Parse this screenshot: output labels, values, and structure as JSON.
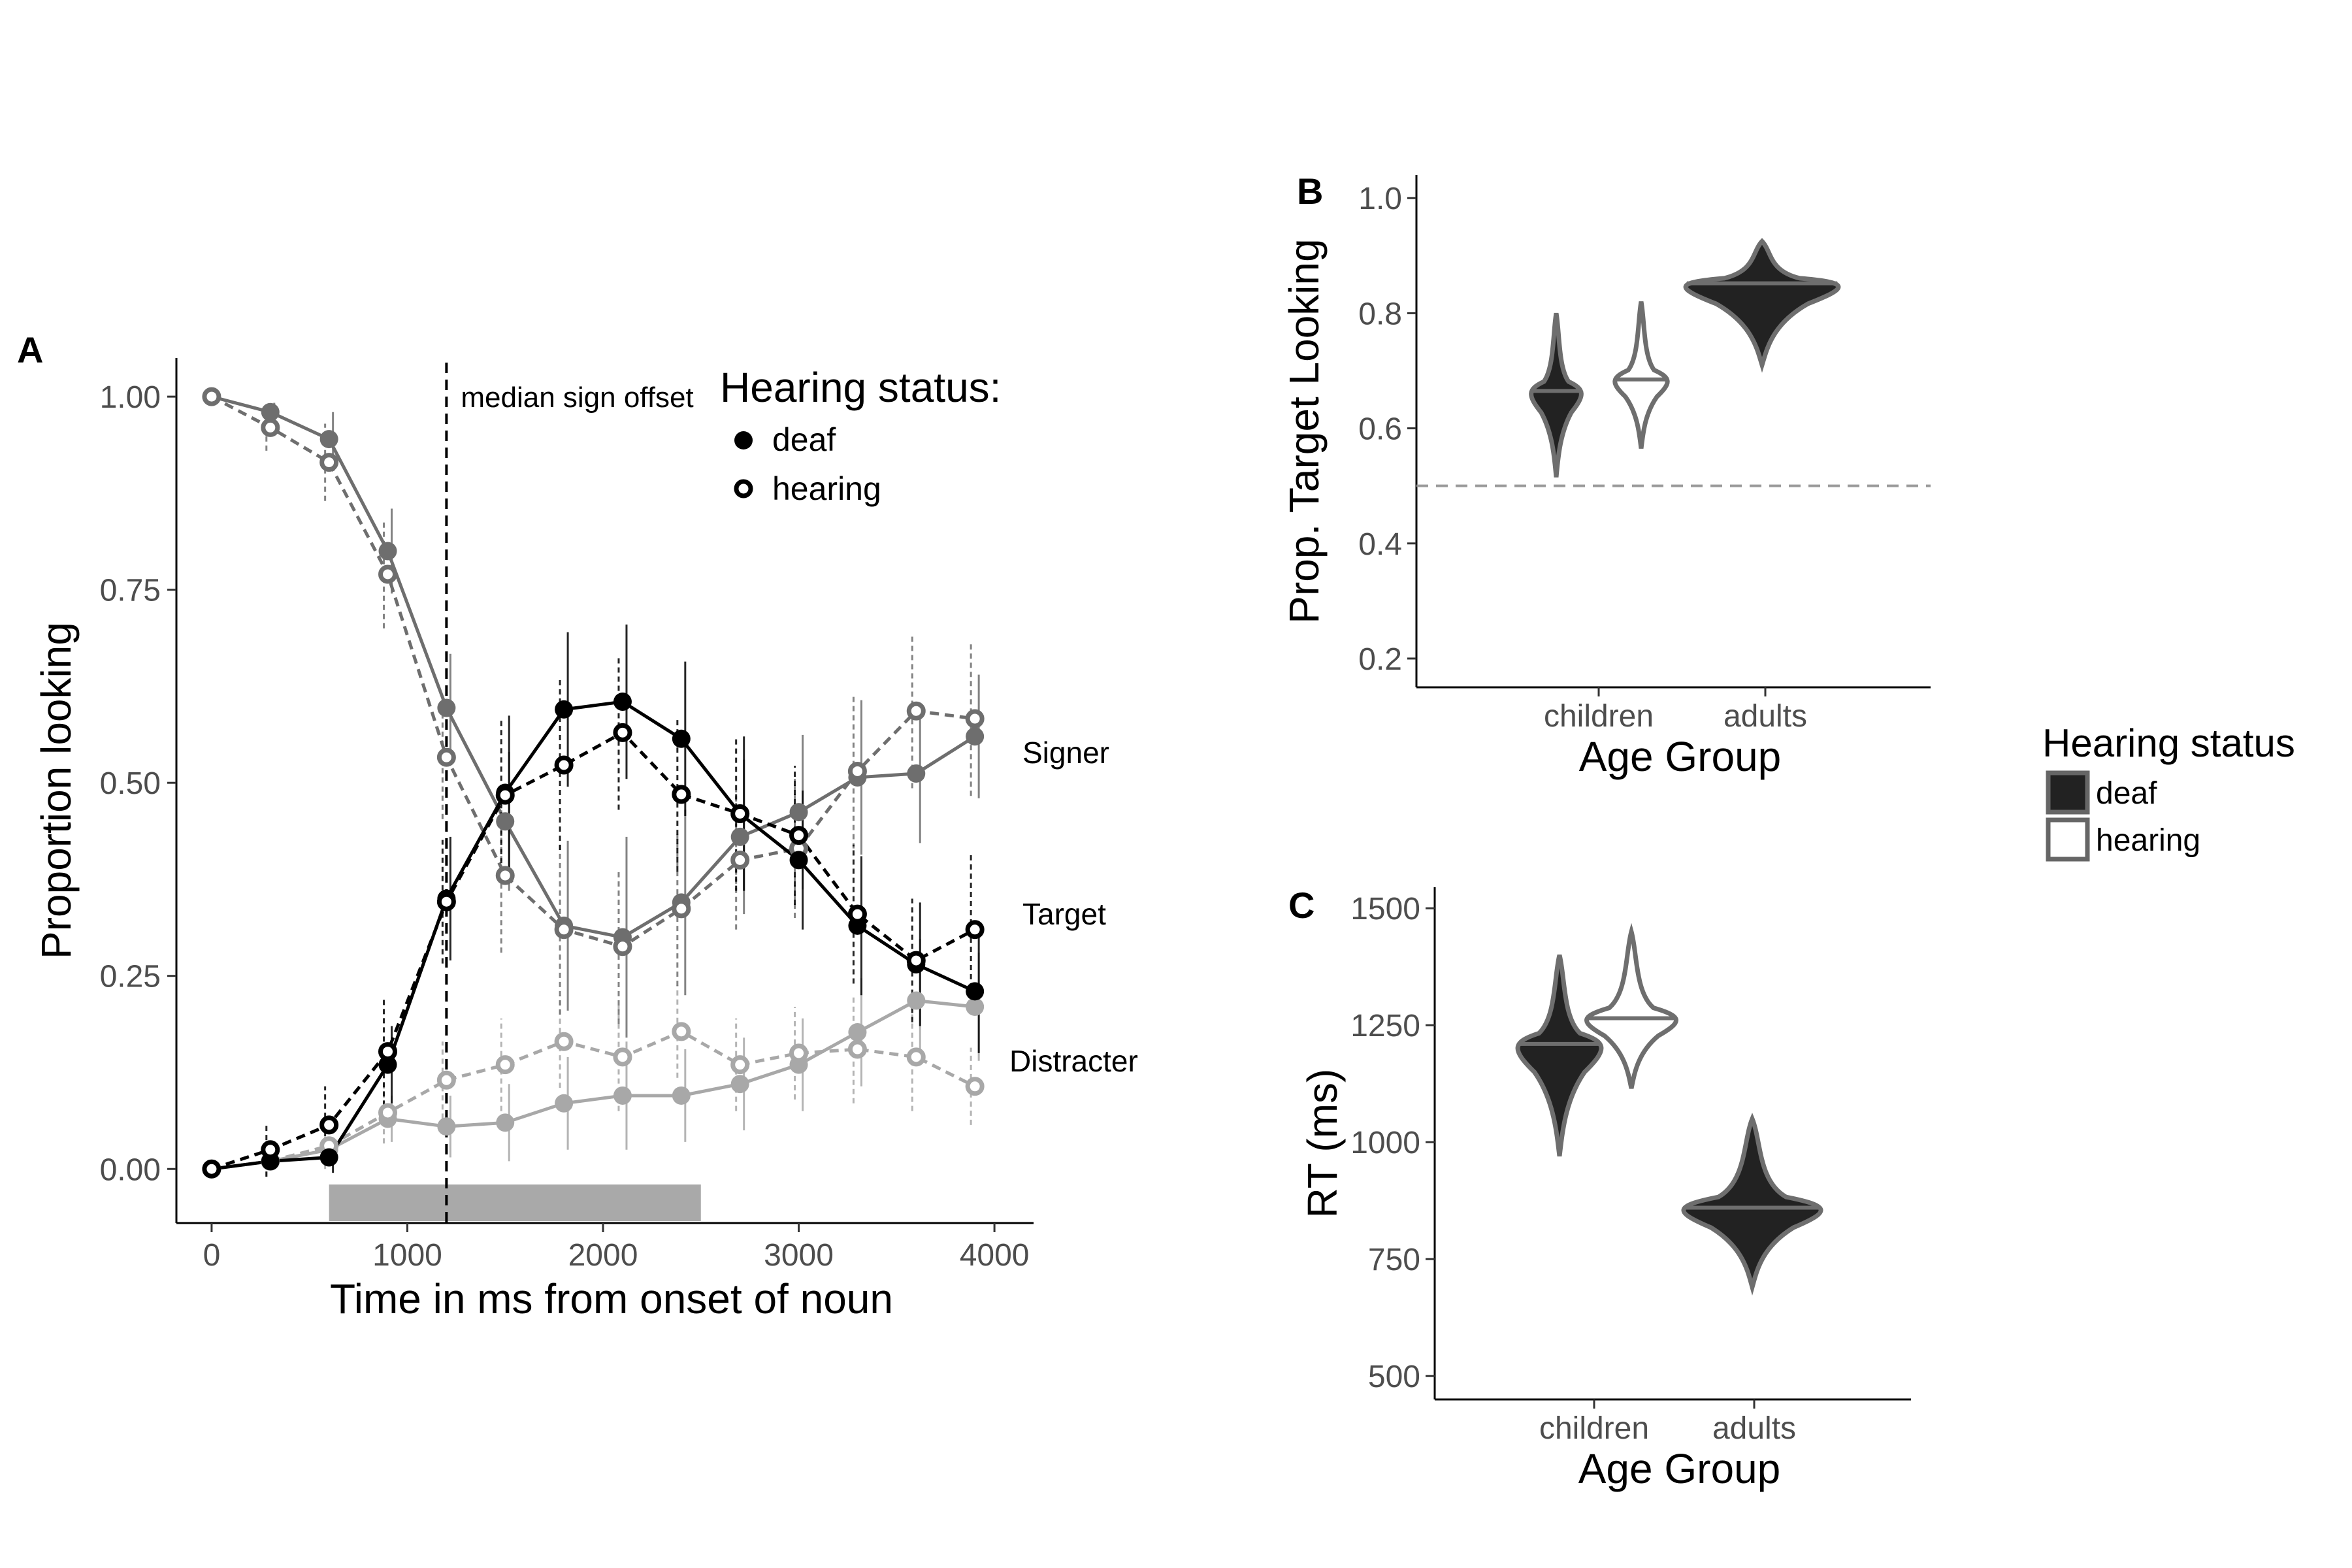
{
  "chart_data": [
    {
      "panel": "A",
      "type": "line",
      "xlabel": "Time in ms from onset of noun",
      "ylabel": "Proportion looking",
      "xlim": [
        -180,
        4200
      ],
      "ylim": [
        -0.07,
        1.05
      ],
      "x_ticks": [
        0,
        1000,
        2000,
        3000,
        4000
      ],
      "y_ticks": [
        0.0,
        0.25,
        0.5,
        0.75,
        1.0
      ],
      "y_tick_labels": [
        "0.00",
        "0.25",
        "0.50",
        "0.75",
        "1.00"
      ],
      "grid": false,
      "x": [
        0,
        300,
        600,
        900,
        1200,
        1500,
        1800,
        2100,
        2400,
        2700,
        3000,
        3300,
        3600,
        3900
      ],
      "vline": {
        "x": 1200,
        "label": "median sign offset"
      },
      "shaded_window": {
        "x_start": 600,
        "x_end": 2500
      },
      "legend": {
        "title": "Hearing status:",
        "entries": [
          "deaf",
          "hearing"
        ],
        "placement": "top-right"
      },
      "region_labels": [
        "Signer",
        "Target",
        "Distracter"
      ],
      "colors": {
        "Signer": "#6e6e6e",
        "Target": "#000000",
        "Distracter": "#a8a8a8",
        "shade": "#a9a9a9"
      },
      "series": [
        {
          "region": "Signer",
          "group": "deaf",
          "values": [
            1.0,
            0.98,
            0.945,
            0.8,
            0.597,
            0.45,
            0.315,
            0.3,
            0.345,
            0.43,
            0.462,
            0.507,
            0.512,
            0.56
          ],
          "err": [
            0.0,
            0.012,
            0.035,
            0.055,
            0.07,
            0.09,
            0.11,
            0.13,
            0.12,
            0.1,
            0.1,
            0.1,
            0.09,
            0.08
          ]
        },
        {
          "region": "Signer",
          "group": "hearing",
          "values": [
            1.0,
            0.96,
            0.915,
            0.77,
            0.533,
            0.38,
            0.31,
            0.288,
            0.337,
            0.4,
            0.415,
            0.515,
            0.593,
            0.583
          ],
          "err": [
            0.0,
            0.03,
            0.05,
            0.07,
            0.08,
            0.1,
            0.11,
            0.1,
            0.1,
            0.09,
            0.09,
            0.1,
            0.1,
            0.1
          ]
        },
        {
          "region": "Target",
          "group": "deaf",
          "values": [
            0.0,
            0.01,
            0.015,
            0.135,
            0.35,
            0.487,
            0.595,
            0.605,
            0.557,
            0.46,
            0.4,
            0.315,
            0.265,
            0.23
          ],
          "err": [
            0.0,
            0.01,
            0.02,
            0.05,
            0.08,
            0.1,
            0.1,
            0.1,
            0.1,
            0.1,
            0.09,
            0.09,
            0.08,
            0.08
          ]
        },
        {
          "region": "Target",
          "group": "hearing",
          "values": [
            0.0,
            0.025,
            0.057,
            0.152,
            0.346,
            0.484,
            0.523,
            0.565,
            0.485,
            0.46,
            0.432,
            0.33,
            0.27,
            0.31
          ],
          "err": [
            0.0,
            0.035,
            0.05,
            0.07,
            0.08,
            0.1,
            0.11,
            0.1,
            0.1,
            0.1,
            0.09,
            0.09,
            0.08,
            0.1
          ]
        },
        {
          "region": "Distracter",
          "group": "deaf",
          "values": [
            0.0,
            0.01,
            0.025,
            0.065,
            0.055,
            0.06,
            0.085,
            0.095,
            0.095,
            0.11,
            0.135,
            0.177,
            0.218,
            0.21
          ],
          "err": [
            0.0,
            0.01,
            0.015,
            0.03,
            0.04,
            0.05,
            0.06,
            0.07,
            0.06,
            0.06,
            0.06,
            0.07,
            0.08,
            0.07
          ]
        },
        {
          "region": "Distracter",
          "group": "hearing",
          "values": [
            0.0,
            0.01,
            0.03,
            0.073,
            0.115,
            0.135,
            0.165,
            0.145,
            0.178,
            0.135,
            0.15,
            0.155,
            0.145,
            0.107
          ],
          "err": [
            0.0,
            0.02,
            0.03,
            0.04,
            0.05,
            0.06,
            0.06,
            0.07,
            0.06,
            0.06,
            0.06,
            0.07,
            0.07,
            0.05
          ]
        }
      ]
    },
    {
      "panel": "B",
      "type": "violin",
      "xlabel": "Age Group",
      "ylabel": "Prop. Target Looking",
      "ylim": [
        0.15,
        1.04
      ],
      "y_ticks": [
        0.2,
        0.4,
        0.6,
        0.8,
        1.0
      ],
      "y_tick_labels": [
        "0.2",
        "0.4",
        "0.6",
        "0.8",
        "1.0"
      ],
      "categories": [
        "children",
        "adults"
      ],
      "hline": {
        "y": 0.5,
        "style": "dashed"
      },
      "violins": [
        {
          "category": "children",
          "group": "deaf",
          "min": 0.515,
          "max": 0.8,
          "median": 0.665
        },
        {
          "category": "children",
          "group": "hearing",
          "min": 0.565,
          "max": 0.82,
          "median": 0.685
        },
        {
          "category": "adults",
          "group": "deaf",
          "min": 0.71,
          "max": 0.925,
          "median": 0.852
        }
      ]
    },
    {
      "panel": "C",
      "type": "violin",
      "xlabel": "Age Group",
      "ylabel": "RT (ms)",
      "ylim": [
        450,
        1545
      ],
      "y_ticks": [
        500,
        750,
        1000,
        1250,
        1500
      ],
      "y_tick_labels": [
        "500",
        "750",
        "1000",
        "1250",
        "1500"
      ],
      "categories": [
        "children",
        "adults"
      ],
      "violins": [
        {
          "category": "children",
          "group": "deaf",
          "min": 970,
          "max": 1400,
          "median": 1210
        },
        {
          "category": "children",
          "group": "hearing",
          "min": 1115,
          "max": 1450,
          "median": 1265
        },
        {
          "category": "adults",
          "group": "deaf",
          "min": 690,
          "max": 1050,
          "median": 860
        }
      ]
    }
  ],
  "shared_legend": {
    "title": "Hearing status",
    "entries": [
      "deaf",
      "hearing"
    ],
    "colors": {
      "deaf": "#222222",
      "hearing": "#ffffff",
      "outline": "#666666"
    }
  }
}
